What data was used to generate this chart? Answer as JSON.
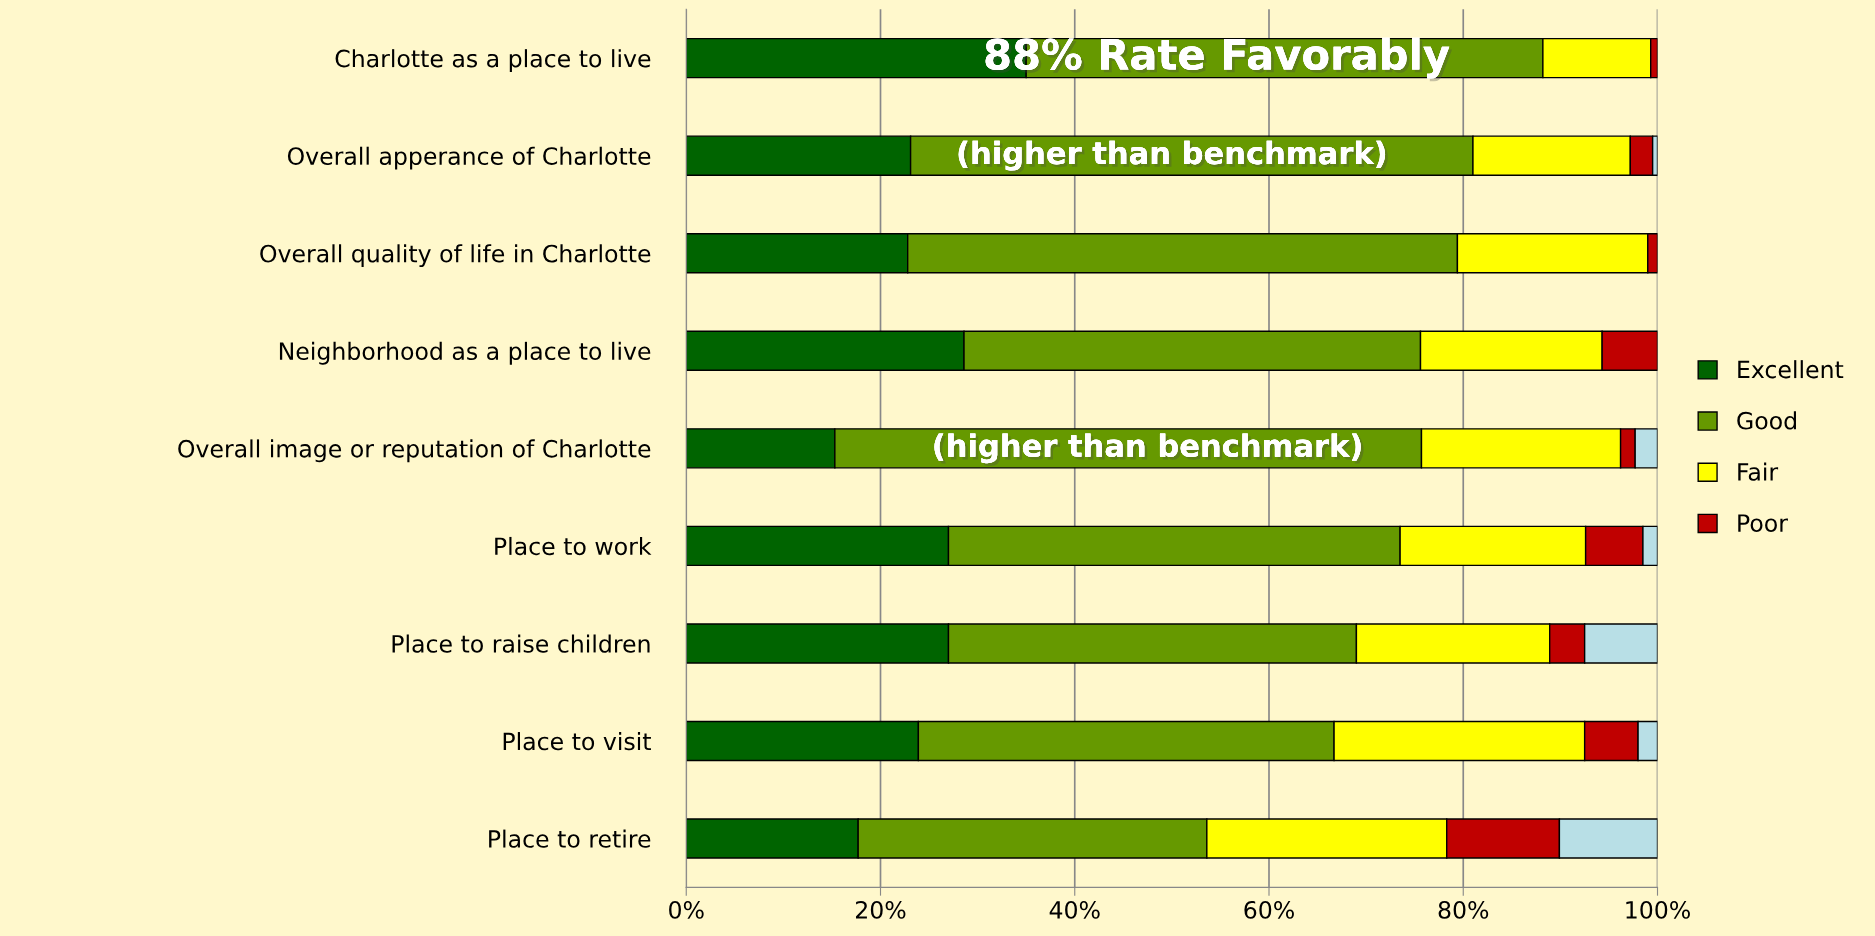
{
  "chart_data": {
    "type": "bar",
    "orientation": "horizontal",
    "stacked": true,
    "categories": [
      "Charlotte as a place to live",
      "Overall apperance of Charlotte",
      "Overall quality of life in Charlotte",
      "Neighborhood as a place to live",
      "Overall image or reputation of Charlotte",
      "Place to work",
      "Place to raise children",
      "Place to visit",
      "Place to retire"
    ],
    "series": [
      {
        "name": "Excellent",
        "color": "#006400",
        "values": [
          35.0,
          23.1,
          22.8,
          28.6,
          15.3,
          27.0,
          27.0,
          23.9,
          17.7
        ]
      },
      {
        "name": "Good",
        "color": "#669900",
        "values": [
          53.2,
          57.9,
          56.6,
          47.0,
          60.4,
          46.5,
          42.0,
          42.8,
          35.9
        ]
      },
      {
        "name": "Fair",
        "color": "#ffff00",
        "values": [
          11.1,
          16.2,
          19.6,
          18.7,
          20.5,
          19.1,
          19.9,
          25.8,
          24.7
        ]
      },
      {
        "name": "Poor",
        "color": "#c00000",
        "values": [
          0.7,
          2.3,
          1.0,
          5.7,
          1.5,
          5.9,
          3.6,
          5.5,
          11.6
        ]
      },
      {
        "color": "#b8dfe6",
        "values": [
          null,
          0.5,
          null,
          null,
          2.3,
          1.5,
          7.5,
          2.0,
          10.1
        ]
      }
    ],
    "xlim": [
      0,
      100
    ],
    "xticks": [
      {
        "value": 0,
        "label": "0%"
      },
      {
        "value": 20,
        "label": "20%"
      },
      {
        "value": 40,
        "label": "40%"
      },
      {
        "value": 60,
        "label": "60%"
      },
      {
        "value": 80,
        "label": "80%"
      },
      {
        "value": 100,
        "label": "100%"
      }
    ],
    "grid": "x",
    "legend": "right",
    "annotations": [
      "88% Rate Favorably",
      "(higher than benchmark)",
      "(higher than benchmark)"
    ]
  }
}
